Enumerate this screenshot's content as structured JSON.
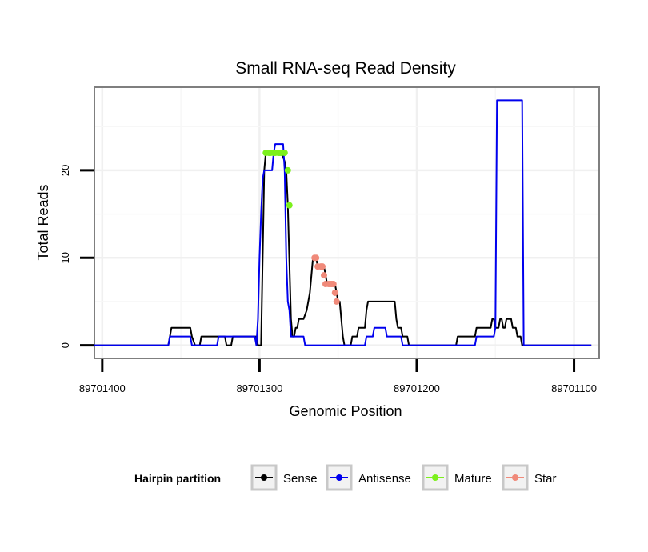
{
  "chart_data": {
    "type": "line",
    "title": "Small RNA-seq Read Density",
    "xlabel": "Genomic Position",
    "ylabel": "Total Reads",
    "x_reversed": true,
    "xlim": [
      89701405,
      89701084
    ],
    "ylim": [
      -1.5,
      29.5
    ],
    "x_ticks": [
      89701400,
      89701300,
      89701200,
      89701100
    ],
    "x_tick_labels": [
      "89701400",
      "89701300",
      "89701200",
      "89701100"
    ],
    "y_ticks": [
      0,
      10,
      20
    ],
    "y_tick_labels": [
      "0",
      "10",
      "20"
    ],
    "legend": {
      "title": "Hairpin partition",
      "position": "bottom",
      "entries": [
        {
          "label": "Sense",
          "color": "#000000"
        },
        {
          "label": "Antisense",
          "color": "#0000ee"
        },
        {
          "label": "Mature",
          "color": "#7cf01c"
        },
        {
          "label": "Star",
          "color": "#f08a7a"
        }
      ]
    },
    "series": [
      {
        "name": "Sense",
        "color": "#000000",
        "points": [
          [
            89701405,
            0
          ],
          [
            89701358,
            0
          ],
          [
            89701357,
            1
          ],
          [
            89701356,
            2
          ],
          [
            89701344,
            2
          ],
          [
            89701343,
            1
          ],
          [
            89701341,
            0
          ],
          [
            89701338,
            0
          ],
          [
            89701337,
            1
          ],
          [
            89701322,
            1
          ],
          [
            89701321,
            0
          ],
          [
            89701318,
            0
          ],
          [
            89701317,
            1
          ],
          [
            89701302,
            1
          ],
          [
            89701301,
            0
          ],
          [
            89701299,
            0
          ],
          [
            89701297,
            20
          ],
          [
            89701296,
            22
          ],
          [
            89701286,
            22
          ],
          [
            89701284,
            21
          ],
          [
            89701283,
            20
          ],
          [
            89701282,
            16
          ],
          [
            89701280,
            3
          ],
          [
            89701279,
            1
          ],
          [
            89701278,
            1
          ],
          [
            89701277,
            2
          ],
          [
            89701276,
            2
          ],
          [
            89701275,
            3
          ],
          [
            89701272,
            3
          ],
          [
            89701270,
            4
          ],
          [
            89701268,
            6
          ],
          [
            89701266,
            10
          ],
          [
            89701264,
            10
          ],
          [
            89701263,
            9
          ],
          [
            89701259,
            9
          ],
          [
            89701258,
            8
          ],
          [
            89701257,
            7
          ],
          [
            89701252,
            7
          ],
          [
            89701251,
            6
          ],
          [
            89701250,
            5
          ],
          [
            89701249,
            5
          ],
          [
            89701247,
            1
          ],
          [
            89701246,
            0
          ],
          [
            89701242,
            0
          ],
          [
            89701241,
            1
          ],
          [
            89701238,
            1
          ],
          [
            89701237,
            2
          ],
          [
            89701233,
            2
          ],
          [
            89701232,
            4
          ],
          [
            89701231,
            5
          ],
          [
            89701214,
            5
          ],
          [
            89701213,
            3
          ],
          [
            89701212,
            2
          ],
          [
            89701210,
            2
          ],
          [
            89701209,
            1
          ],
          [
            89701206,
            1
          ],
          [
            89701205,
            0
          ],
          [
            89701175,
            0
          ],
          [
            89701174,
            1
          ],
          [
            89701163,
            1
          ],
          [
            89701162,
            2
          ],
          [
            89701153,
            2
          ],
          [
            89701152,
            3
          ],
          [
            89701151,
            3
          ],
          [
            89701150,
            2
          ],
          [
            89701148,
            2
          ],
          [
            89701147,
            3
          ],
          [
            89701146,
            3
          ],
          [
            89701145,
            2
          ],
          [
            89701144,
            2
          ],
          [
            89701143,
            3
          ],
          [
            89701140,
            3
          ],
          [
            89701139,
            2
          ],
          [
            89701137,
            2
          ],
          [
            89701136,
            1
          ],
          [
            89701134,
            1
          ],
          [
            89701133,
            0
          ],
          [
            89701089,
            0
          ]
        ]
      },
      {
        "name": "Antisense",
        "color": "#0000ee",
        "points": [
          [
            89701405,
            0
          ],
          [
            89701358,
            0
          ],
          [
            89701357,
            1
          ],
          [
            89701344,
            1
          ],
          [
            89701343,
            0
          ],
          [
            89701327,
            0
          ],
          [
            89701326,
            1
          ],
          [
            89701303,
            1
          ],
          [
            89701302,
            0
          ],
          [
            89701301,
            3
          ],
          [
            89701300,
            10
          ],
          [
            89701299,
            15
          ],
          [
            89701298,
            19
          ],
          [
            89701297,
            20
          ],
          [
            89701292,
            20
          ],
          [
            89701291,
            22
          ],
          [
            89701290,
            23
          ],
          [
            89701285,
            23
          ],
          [
            89701284,
            20
          ],
          [
            89701283,
            10
          ],
          [
            89701282,
            5
          ],
          [
            89701281,
            4
          ],
          [
            89701280,
            1
          ],
          [
            89701272,
            1
          ],
          [
            89701271,
            0
          ],
          [
            89701233,
            0
          ],
          [
            89701232,
            1
          ],
          [
            89701228,
            1
          ],
          [
            89701227,
            2
          ],
          [
            89701220,
            2
          ],
          [
            89701219,
            1
          ],
          [
            89701210,
            1
          ],
          [
            89701209,
            0
          ],
          [
            89701163,
            0
          ],
          [
            89701162,
            1
          ],
          [
            89701151,
            1
          ],
          [
            89701150,
            2
          ],
          [
            89701149,
            28
          ],
          [
            89701133,
            28
          ],
          [
            89701132,
            0
          ],
          [
            89701089,
            0
          ]
        ]
      }
    ],
    "markers": [
      {
        "name": "Mature",
        "color": "#7cf01c",
        "points": [
          [
            89701296,
            22
          ],
          [
            89701294,
            22
          ],
          [
            89701293,
            22
          ],
          [
            89701291,
            22
          ],
          [
            89701290,
            22
          ],
          [
            89701288,
            22
          ],
          [
            89701287,
            22
          ],
          [
            89701286,
            22
          ],
          [
            89701284,
            22
          ],
          [
            89701282,
            20
          ],
          [
            89701281,
            16
          ]
        ]
      },
      {
        "name": "Star",
        "color": "#f08a7a",
        "points": [
          [
            89701265,
            10
          ],
          [
            89701264,
            10
          ],
          [
            89701263,
            9
          ],
          [
            89701261,
            9
          ],
          [
            89701260,
            9
          ],
          [
            89701259,
            8
          ],
          [
            89701258,
            7
          ],
          [
            89701256,
            7
          ],
          [
            89701255,
            7
          ],
          [
            89701254,
            7
          ],
          [
            89701253,
            7
          ],
          [
            89701252,
            6
          ],
          [
            89701251,
            5
          ]
        ]
      }
    ]
  }
}
